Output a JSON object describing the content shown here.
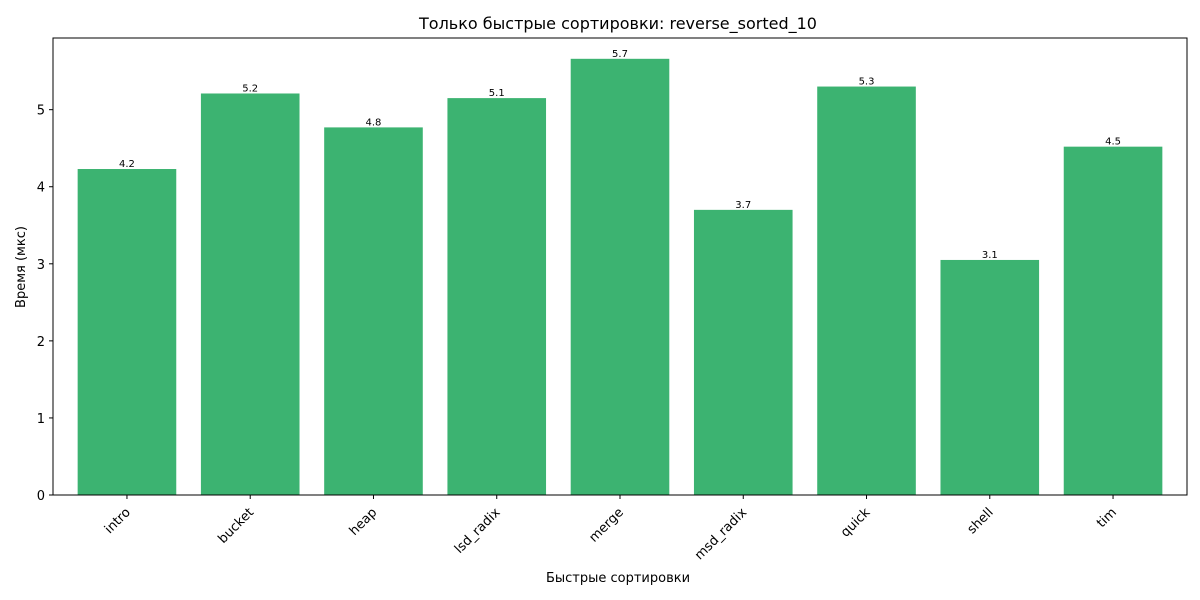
{
  "chart_data": {
    "type": "bar",
    "title": "Только быстрые сортировки: reverse_sorted_10",
    "xlabel": "Быстрые сортировки",
    "ylabel": "Время (мкс)",
    "categories": [
      "intro",
      "bucket",
      "heap",
      "lsd_radix",
      "merge",
      "msd_radix",
      "quick",
      "shell",
      "tim"
    ],
    "values": [
      4.23,
      5.21,
      4.77,
      5.15,
      5.66,
      3.7,
      5.3,
      3.05,
      4.52
    ],
    "data_labels": [
      "4.2",
      "5.2",
      "4.8",
      "5.1",
      "5.7",
      "3.7",
      "5.3",
      "3.1",
      "4.5"
    ],
    "ylim": [
      0,
      5.93
    ],
    "yticks": [
      0,
      1,
      2,
      3,
      4,
      5
    ],
    "bar_color": "#3cb371",
    "grid": false,
    "legend": "none"
  }
}
